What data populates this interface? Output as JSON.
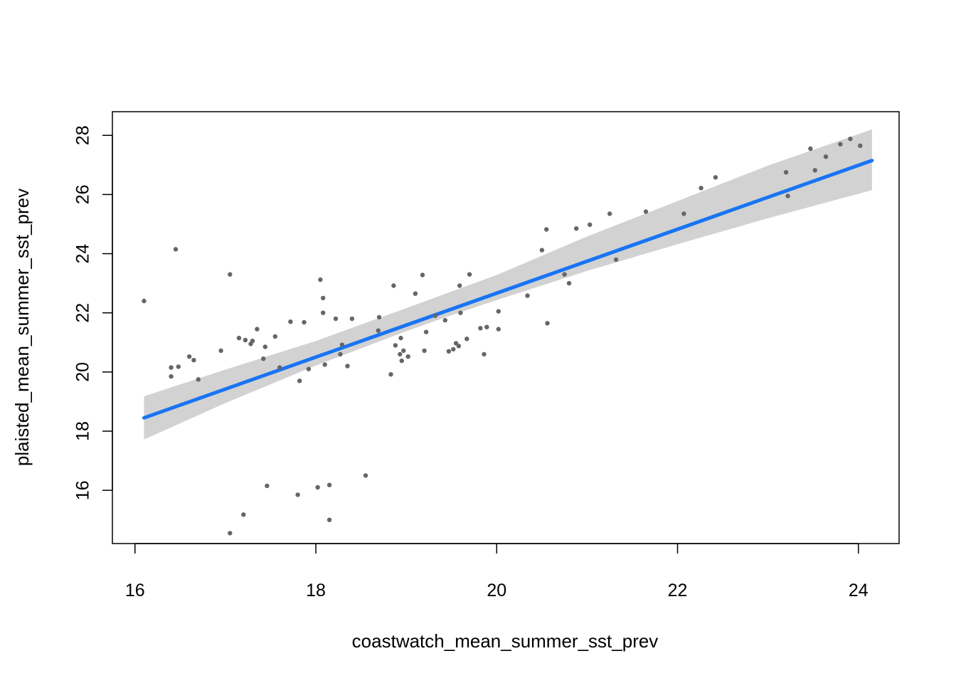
{
  "chart_data": {
    "type": "scatter",
    "xlabel": "coastwatch_mean_summer_sst_prev",
    "ylabel": "plaisted_mean_summer_sst_prev",
    "xlim": [
      15.75,
      24.45
    ],
    "ylim": [
      14.2,
      28.8
    ],
    "x_ticks": [
      16,
      18,
      20,
      22,
      24
    ],
    "y_ticks": [
      16,
      18,
      20,
      22,
      24,
      26,
      28
    ],
    "x_tick_labels": [
      "16",
      "18",
      "20",
      "22",
      "24"
    ],
    "y_tick_labels": [
      "16",
      "18",
      "20",
      "22",
      "24",
      "26",
      "28"
    ],
    "grid": false,
    "colors": {
      "points": "#666666",
      "fit_line": "#1874f4",
      "confidence_band": "#d2d2d2",
      "frame": "#000000"
    },
    "fit_line": {
      "x": [
        16.1,
        24.15
      ],
      "y": [
        18.45,
        27.15
      ]
    },
    "confidence_band": {
      "x": [
        16.1,
        17.0,
        18.0,
        19.0,
        19.5,
        20.0,
        21.0,
        22.0,
        23.0,
        24.15
      ],
      "lower": [
        17.72,
        18.95,
        20.22,
        21.38,
        21.92,
        22.43,
        23.42,
        24.32,
        25.2,
        26.15
      ],
      "upper": [
        19.18,
        20.08,
        21.05,
        22.16,
        22.72,
        23.28,
        24.58,
        25.78,
        26.98,
        28.2
      ]
    },
    "points": [
      [
        16.1,
        22.4
      ],
      [
        16.4,
        19.85
      ],
      [
        16.4,
        20.15
      ],
      [
        16.45,
        24.15
      ],
      [
        16.48,
        20.18
      ],
      [
        16.6,
        20.52
      ],
      [
        16.65,
        20.4
      ],
      [
        16.7,
        19.75
      ],
      [
        16.95,
        20.72
      ],
      [
        17.05,
        23.3
      ],
      [
        17.05,
        14.55
      ],
      [
        17.15,
        21.15
      ],
      [
        17.2,
        15.18
      ],
      [
        17.22,
        21.08
      ],
      [
        17.28,
        20.95
      ],
      [
        17.3,
        21.05
      ],
      [
        17.35,
        21.45
      ],
      [
        17.42,
        20.45
      ],
      [
        17.44,
        20.85
      ],
      [
        17.46,
        16.15
      ],
      [
        17.55,
        21.2
      ],
      [
        17.6,
        20.15
      ],
      [
        17.72,
        21.7
      ],
      [
        17.8,
        15.85
      ],
      [
        17.82,
        19.7
      ],
      [
        17.87,
        21.68
      ],
      [
        17.92,
        20.1
      ],
      [
        18.02,
        16.1
      ],
      [
        18.05,
        23.12
      ],
      [
        18.08,
        22.5
      ],
      [
        18.08,
        22.0
      ],
      [
        18.1,
        20.25
      ],
      [
        18.15,
        16.18
      ],
      [
        18.15,
        15.0
      ],
      [
        18.22,
        21.8
      ],
      [
        18.27,
        20.6
      ],
      [
        18.29,
        20.92
      ],
      [
        18.35,
        20.2
      ],
      [
        18.4,
        21.8
      ],
      [
        18.55,
        16.5
      ],
      [
        18.69,
        21.4
      ],
      [
        18.7,
        21.85
      ],
      [
        18.83,
        19.92
      ],
      [
        18.86,
        22.92
      ],
      [
        18.88,
        20.9
      ],
      [
        18.93,
        20.6
      ],
      [
        18.94,
        21.15
      ],
      [
        18.95,
        20.38
      ],
      [
        18.97,
        20.72
      ],
      [
        19.02,
        20.52
      ],
      [
        19.1,
        22.65
      ],
      [
        19.18,
        23.28
      ],
      [
        19.2,
        20.72
      ],
      [
        19.22,
        21.35
      ],
      [
        19.32,
        21.9
      ],
      [
        19.43,
        21.75
      ],
      [
        19.47,
        20.7
      ],
      [
        19.52,
        20.77
      ],
      [
        19.55,
        20.97
      ],
      [
        19.58,
        20.88
      ],
      [
        19.59,
        22.92
      ],
      [
        19.6,
        22.0
      ],
      [
        19.67,
        21.12
      ],
      [
        19.7,
        23.3
      ],
      [
        19.82,
        21.48
      ],
      [
        19.86,
        20.6
      ],
      [
        19.89,
        21.52
      ],
      [
        20.02,
        21.45
      ],
      [
        20.02,
        22.05
      ],
      [
        20.34,
        22.58
      ],
      [
        20.5,
        24.12
      ],
      [
        20.55,
        24.82
      ],
      [
        20.56,
        21.65
      ],
      [
        20.75,
        23.3
      ],
      [
        20.8,
        23.0
      ],
      [
        20.88,
        24.85
      ],
      [
        21.03,
        24.98
      ],
      [
        21.25,
        25.35
      ],
      [
        21.32,
        23.8
      ],
      [
        21.65,
        25.42
      ],
      [
        22.07,
        25.35
      ],
      [
        22.26,
        26.22
      ],
      [
        22.42,
        26.58
      ],
      [
        23.2,
        26.75
      ],
      [
        23.22,
        25.95
      ],
      [
        23.47,
        27.55
      ],
      [
        23.52,
        26.82
      ],
      [
        23.64,
        27.28
      ],
      [
        23.8,
        27.7
      ],
      [
        23.91,
        27.88
      ],
      [
        24.02,
        27.65
      ]
    ]
  }
}
